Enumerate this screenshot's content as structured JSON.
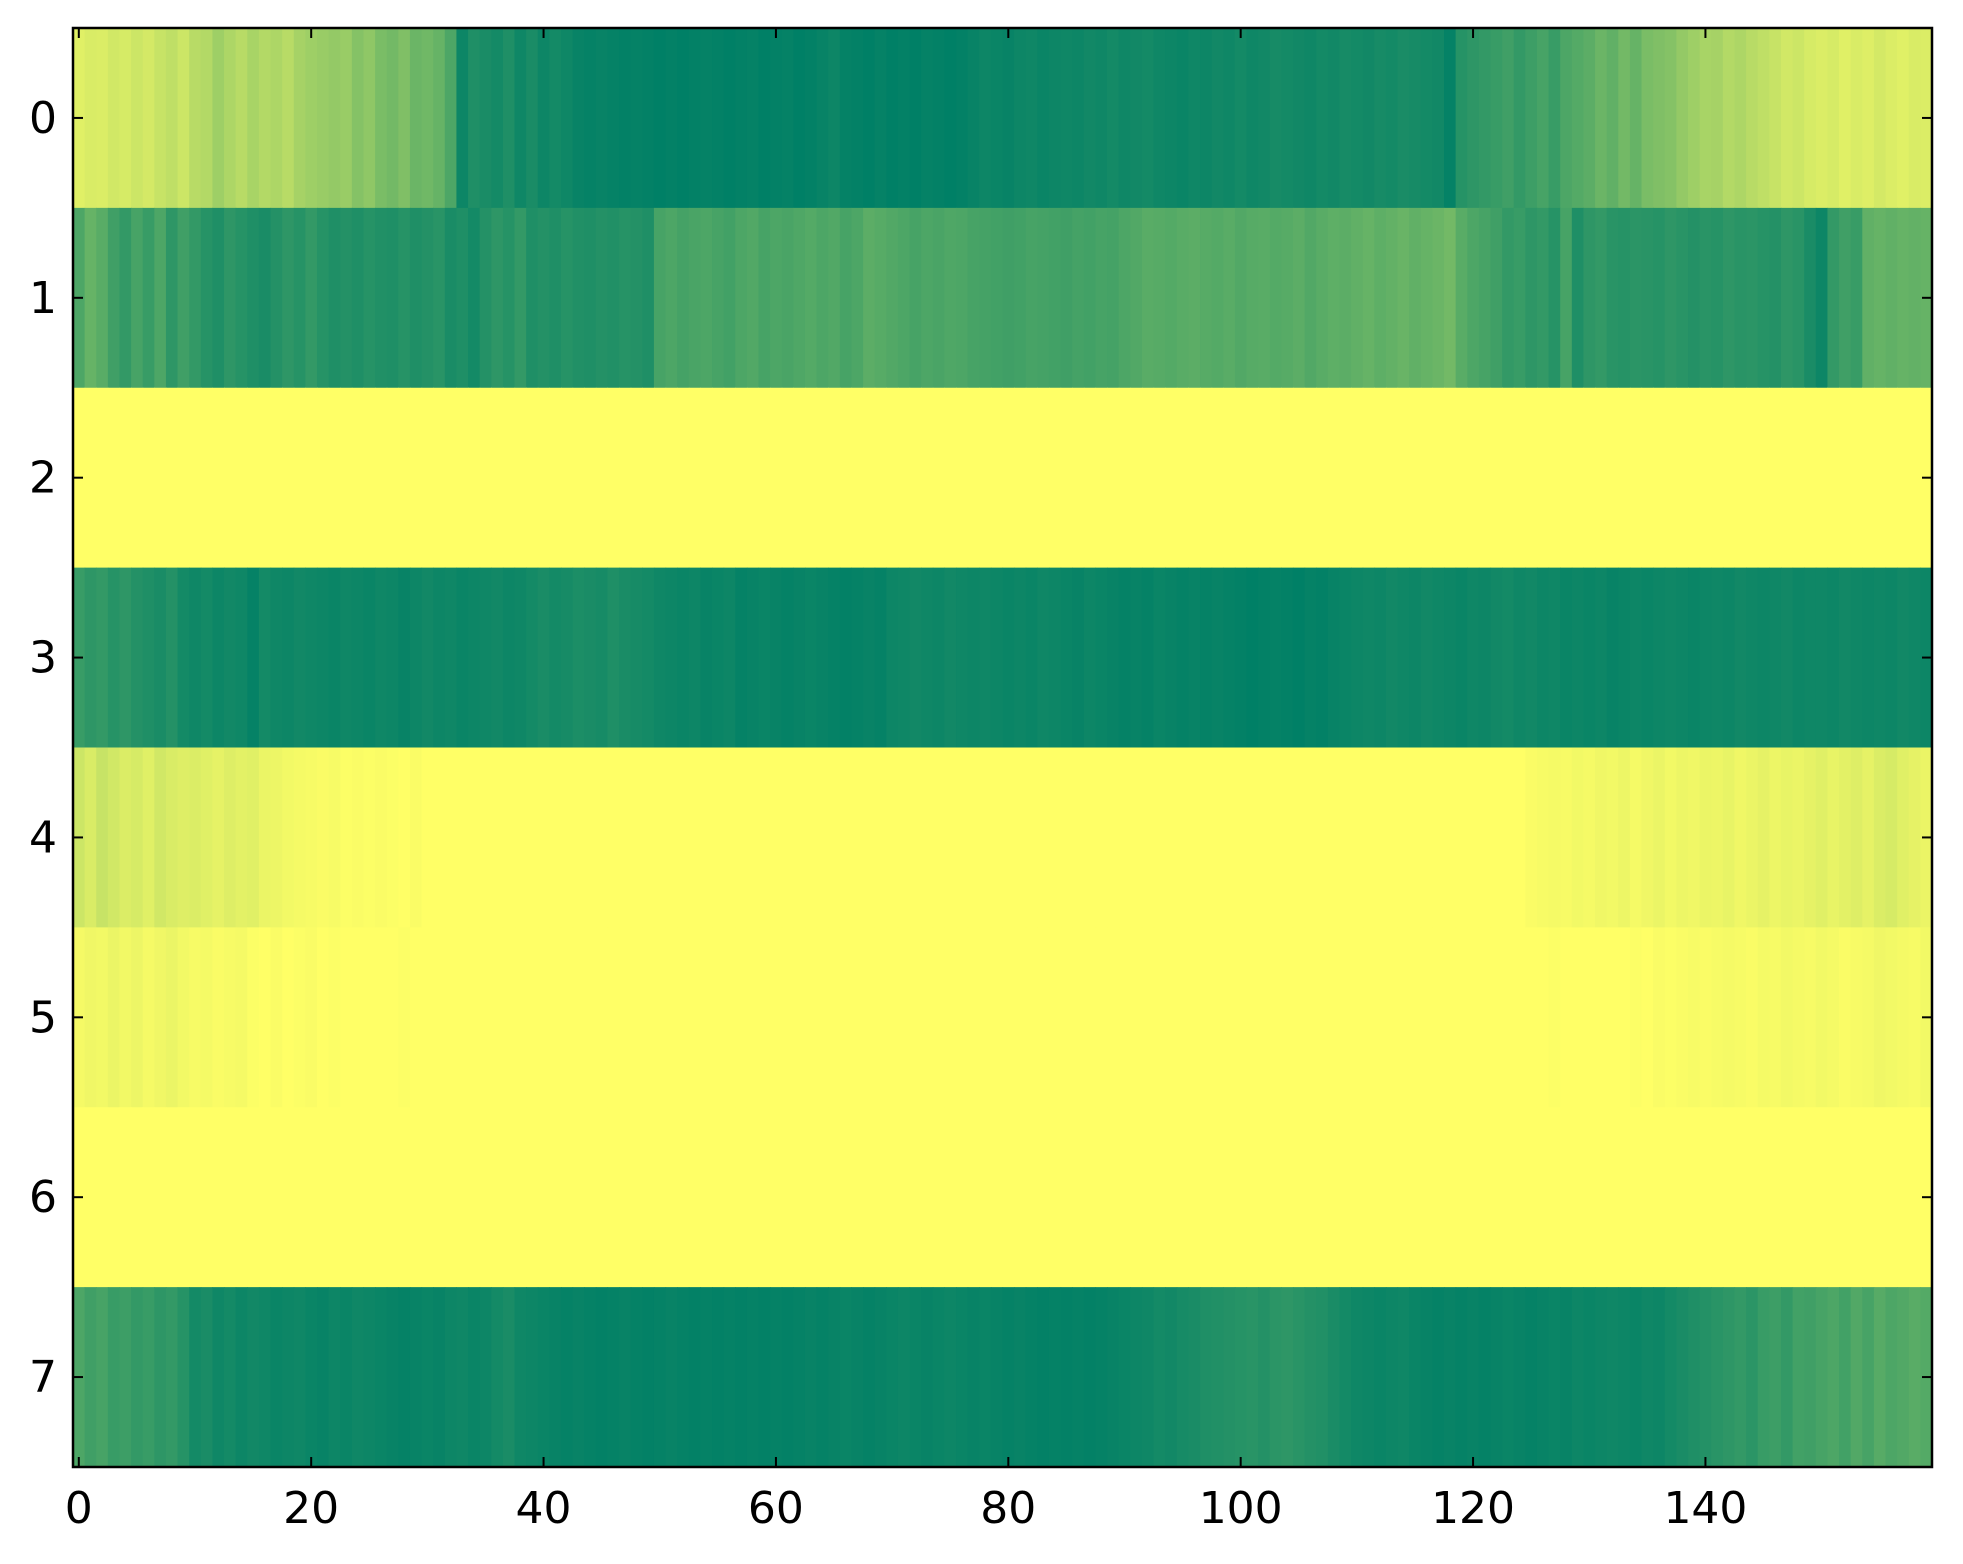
{
  "chart_data": {
    "type": "heatmap",
    "colormap": "summer",
    "clim": [
      0,
      1
    ],
    "xlim": [
      -0.5,
      159.5
    ],
    "ylim": [
      7.5,
      -0.5
    ],
    "xticks": [
      0,
      20,
      40,
      60,
      80,
      100,
      120,
      140
    ],
    "yticks": [
      0,
      1,
      2,
      3,
      4,
      5,
      6,
      7
    ],
    "z": [
      [
        0.88,
        0.85,
        0.86,
        0.82,
        0.84,
        0.8,
        0.83,
        0.78,
        0.75,
        0.8,
        0.72,
        0.7,
        0.62,
        0.68,
        0.72,
        0.66,
        0.7,
        0.68,
        0.72,
        0.65,
        0.62,
        0.6,
        0.58,
        0.6,
        0.52,
        0.56,
        0.48,
        0.45,
        0.5,
        0.42,
        0.44,
        0.4,
        0.3,
        0.05,
        0.12,
        0.1,
        0.08,
        0.12,
        0.06,
        0.1,
        0.05,
        0.08,
        0.06,
        0.03,
        0.02,
        0.03,
        0.02,
        0.01,
        0.02,
        0.01,
        0.0,
        0.01,
        0.0,
        0.01,
        0.02,
        0.01,
        0.0,
        0.01,
        0.02,
        0.0,
        0.01,
        0.02,
        0.0,
        0.01,
        0.03,
        0.05,
        0.02,
        0.01,
        0.0,
        0.02,
        0.0,
        0.01,
        0.0,
        0.02,
        0.01,
        0.0,
        0.01,
        0.03,
        0.05,
        0.04,
        0.03,
        0.05,
        0.06,
        0.04,
        0.05,
        0.06,
        0.05,
        0.07,
        0.06,
        0.08,
        0.06,
        0.07,
        0.08,
        0.06,
        0.05,
        0.04,
        0.06,
        0.05,
        0.07,
        0.06,
        0.08,
        0.06,
        0.07,
        0.09,
        0.08,
        0.07,
        0.06,
        0.08,
        0.07,
        0.09,
        0.08,
        0.07,
        0.09,
        0.08,
        0.1,
        0.09,
        0.08,
        0.07,
        0.02,
        0.15,
        0.18,
        0.2,
        0.22,
        0.25,
        0.2,
        0.24,
        0.28,
        0.22,
        0.3,
        0.33,
        0.36,
        0.42,
        0.38,
        0.45,
        0.4,
        0.48,
        0.5,
        0.52,
        0.58,
        0.62,
        0.66,
        0.65,
        0.7,
        0.68,
        0.72,
        0.75,
        0.78,
        0.82,
        0.8,
        0.84,
        0.86,
        0.84,
        0.88,
        0.85,
        0.87,
        0.83,
        0.86,
        0.88,
        0.85,
        0.86
      ],
      [
        0.3,
        0.4,
        0.35,
        0.25,
        0.2,
        0.28,
        0.22,
        0.3,
        0.18,
        0.25,
        0.2,
        0.15,
        0.12,
        0.18,
        0.15,
        0.12,
        0.1,
        0.14,
        0.18,
        0.15,
        0.2,
        0.15,
        0.12,
        0.14,
        0.12,
        0.15,
        0.13,
        0.12,
        0.15,
        0.12,
        0.14,
        0.16,
        0.1,
        0.12,
        0.08,
        0.14,
        0.18,
        0.15,
        0.2,
        0.12,
        0.14,
        0.12,
        0.15,
        0.13,
        0.12,
        0.14,
        0.13,
        0.15,
        0.14,
        0.12,
        0.28,
        0.3,
        0.27,
        0.29,
        0.3,
        0.28,
        0.26,
        0.3,
        0.32,
        0.28,
        0.3,
        0.29,
        0.31,
        0.33,
        0.3,
        0.32,
        0.28,
        0.3,
        0.36,
        0.34,
        0.32,
        0.3,
        0.28,
        0.3,
        0.29,
        0.31,
        0.3,
        0.28,
        0.27,
        0.26,
        0.25,
        0.26,
        0.28,
        0.27,
        0.26,
        0.25,
        0.27,
        0.26,
        0.28,
        0.27,
        0.3,
        0.32,
        0.35,
        0.34,
        0.33,
        0.35,
        0.36,
        0.34,
        0.33,
        0.35,
        0.32,
        0.34,
        0.35,
        0.33,
        0.34,
        0.36,
        0.32,
        0.35,
        0.37,
        0.36,
        0.38,
        0.4,
        0.37,
        0.39,
        0.41,
        0.38,
        0.4,
        0.42,
        0.45,
        0.35,
        0.3,
        0.28,
        0.25,
        0.2,
        0.22,
        0.18,
        0.2,
        0.15,
        0.28,
        0.12,
        0.18,
        0.2,
        0.16,
        0.15,
        0.17,
        0.16,
        0.15,
        0.18,
        0.16,
        0.14,
        0.16,
        0.15,
        0.18,
        0.16,
        0.17,
        0.15,
        0.14,
        0.18,
        0.16,
        0.1,
        0.05,
        0.2,
        0.25,
        0.22,
        0.38,
        0.4,
        0.38,
        0.4,
        0.39,
        0.4
      ],
      [
        1,
        1,
        1,
        1,
        1,
        1,
        1,
        1,
        1,
        1,
        1,
        1,
        1,
        1,
        1,
        1,
        1,
        1,
        1,
        1,
        1,
        1,
        1,
        1,
        1,
        1,
        1,
        1,
        1,
        1,
        1,
        1,
        1,
        1,
        1,
        1,
        1,
        1,
        1,
        1,
        1,
        1,
        1,
        1,
        1,
        1,
        1,
        1,
        1,
        1,
        1,
        1,
        1,
        1,
        1,
        1,
        1,
        1,
        1,
        1,
        1,
        1,
        1,
        1,
        1,
        1,
        1,
        1,
        1,
        1,
        1,
        1,
        1,
        1,
        1,
        1,
        1,
        1,
        1,
        1,
        1,
        1,
        1,
        1,
        1,
        1,
        1,
        1,
        1,
        1,
        1,
        1,
        1,
        1,
        1,
        1,
        1,
        1,
        1,
        1,
        1,
        1,
        1,
        1,
        1,
        1,
        1,
        1,
        1,
        1,
        1,
        1,
        1,
        1,
        1,
        1,
        1,
        1,
        1,
        1,
        1,
        1,
        1,
        1,
        1,
        1,
        1,
        1,
        1,
        1,
        1,
        1,
        1,
        1,
        1,
        1,
        1,
        1,
        1,
        1,
        1,
        1,
        1,
        1,
        1,
        1,
        1,
        1,
        1,
        1,
        1,
        1,
        1,
        1,
        1,
        1,
        1,
        1,
        1,
        1
      ],
      [
        0.22,
        0.18,
        0.2,
        0.15,
        0.18,
        0.14,
        0.12,
        0.1,
        0.14,
        0.08,
        0.06,
        0.08,
        0.05,
        0.07,
        0.06,
        0.02,
        0.08,
        0.06,
        0.05,
        0.07,
        0.06,
        0.05,
        0.04,
        0.06,
        0.05,
        0.04,
        0.06,
        0.05,
        0.03,
        0.05,
        0.07,
        0.05,
        0.06,
        0.04,
        0.05,
        0.06,
        0.07,
        0.05,
        0.06,
        0.08,
        0.1,
        0.08,
        0.09,
        0.11,
        0.1,
        0.09,
        0.12,
        0.1,
        0.09,
        0.08,
        0.06,
        0.05,
        0.04,
        0.05,
        0.03,
        0.04,
        0.05,
        0.02,
        0.03,
        0.04,
        0.03,
        0.02,
        0.03,
        0.04,
        0.03,
        0.02,
        0.01,
        0.02,
        0.03,
        0.02,
        0.05,
        0.06,
        0.07,
        0.06,
        0.05,
        0.07,
        0.06,
        0.05,
        0.06,
        0.05,
        0.04,
        0.05,
        0.04,
        0.06,
        0.05,
        0.04,
        0.03,
        0.05,
        0.04,
        0.03,
        0.02,
        0.03,
        0.02,
        0.04,
        0.03,
        0.02,
        0.03,
        0.02,
        0.03,
        0.02,
        0.01,
        0.0,
        0.01,
        0.02,
        0.01,
        0.0,
        0.02,
        0.01,
        0.03,
        0.04,
        0.05,
        0.06,
        0.05,
        0.07,
        0.06,
        0.05,
        0.07,
        0.06,
        0.05,
        0.04,
        0.06,
        0.05,
        0.07,
        0.08,
        0.06,
        0.07,
        0.05,
        0.06,
        0.04,
        0.05,
        0.04,
        0.05,
        0.03,
        0.04,
        0.05,
        0.04,
        0.05,
        0.06,
        0.05,
        0.04,
        0.05,
        0.06,
        0.05,
        0.07,
        0.06,
        0.05,
        0.06,
        0.07,
        0.05,
        0.06,
        0.06,
        0.05,
        0.07,
        0.06,
        0.05,
        0.06,
        0.05,
        0.07,
        0.06,
        0.05
      ],
      [
        0.8,
        0.85,
        0.78,
        0.82,
        0.86,
        0.84,
        0.88,
        0.82,
        0.85,
        0.87,
        0.86,
        0.88,
        0.9,
        0.87,
        0.89,
        0.88,
        0.92,
        0.93,
        0.95,
        0.96,
        0.97,
        0.98,
        0.97,
        0.99,
        0.98,
        0.99,
        0.98,
        0.99,
        1,
        0.98,
        1,
        1,
        1,
        1,
        1,
        1,
        1,
        1,
        1,
        1,
        1,
        1,
        1,
        1,
        1,
        1,
        1,
        1,
        1,
        1,
        1,
        1,
        1,
        1,
        1,
        1,
        1,
        1,
        1,
        1,
        1,
        1,
        1,
        1,
        1,
        1,
        1,
        1,
        1,
        1,
        1,
        1,
        1,
        1,
        1,
        1,
        1,
        1,
        1,
        1,
        1,
        1,
        1,
        1,
        1,
        1,
        1,
        1,
        1,
        1,
        1,
        1,
        1,
        1,
        1,
        1,
        1,
        1,
        1,
        1,
        1,
        1,
        1,
        1,
        1,
        1,
        1,
        1,
        1,
        1,
        1,
        1,
        1,
        1,
        1,
        1,
        1,
        1,
        1,
        1,
        1,
        1,
        1,
        1,
        1,
        0.98,
        0.97,
        0.96,
        0.97,
        0.95,
        0.96,
        0.94,
        0.95,
        0.93,
        0.96,
        0.94,
        0.92,
        0.95,
        0.93,
        0.94,
        0.92,
        0.93,
        0.91,
        0.94,
        0.92,
        0.9,
        0.93,
        0.91,
        0.92,
        0.9,
        0.88,
        0.91,
        0.89,
        0.87,
        0.9,
        0.86,
        0.84,
        0.88,
        0.9,
        0.92
      ],
      [
        0.96,
        0.94,
        0.95,
        0.92,
        0.95,
        0.93,
        0.96,
        0.94,
        0.92,
        0.95,
        0.97,
        0.96,
        0.98,
        0.97,
        0.96,
        0.99,
        1,
        0.98,
        1,
        0.99,
        0.98,
        1,
        0.99,
        1,
        1,
        1,
        1,
        1,
        0.99,
        1,
        1,
        1,
        1,
        1,
        1,
        1,
        1,
        1,
        1,
        1,
        1,
        1,
        1,
        1,
        1,
        1,
        1,
        1,
        1,
        1,
        1,
        1,
        1,
        1,
        1,
        1,
        1,
        1,
        1,
        1,
        1,
        1,
        1,
        1,
        1,
        1,
        1,
        1,
        1,
        1,
        1,
        1,
        1,
        1,
        1,
        1,
        1,
        1,
        1,
        1,
        1,
        1,
        1,
        1,
        1,
        1,
        1,
        1,
        1,
        1,
        1,
        1,
        1,
        1,
        1,
        1,
        1,
        1,
        1,
        1,
        1,
        1,
        1,
        1,
        1,
        1,
        1,
        1,
        1,
        1,
        1,
        1,
        1,
        1,
        1,
        1,
        1,
        1,
        1,
        1,
        1,
        1,
        1,
        1,
        1,
        1,
        1,
        0.99,
        1,
        1,
        1,
        1,
        1,
        1,
        0.99,
        1,
        0.98,
        0.99,
        0.98,
        0.97,
        0.98,
        0.97,
        0.96,
        0.97,
        0.98,
        0.96,
        0.97,
        0.95,
        0.96,
        0.97,
        0.95,
        0.96,
        0.98,
        0.97,
        0.96,
        0.94,
        0.95,
        0.96,
        0.97,
        0.95
      ],
      [
        1,
        1,
        1,
        1,
        1,
        1,
        1,
        1,
        1,
        1,
        1,
        1,
        1,
        1,
        1,
        1,
        1,
        1,
        1,
        1,
        1,
        1,
        1,
        1,
        1,
        1,
        1,
        1,
        1,
        1,
        1,
        1,
        1,
        1,
        1,
        1,
        1,
        1,
        1,
        1,
        1,
        1,
        1,
        1,
        1,
        1,
        1,
        1,
        1,
        1,
        1,
        1,
        1,
        1,
        1,
        1,
        1,
        1,
        1,
        1,
        1,
        1,
        1,
        1,
        1,
        1,
        1,
        1,
        1,
        1,
        1,
        1,
        1,
        1,
        1,
        1,
        1,
        1,
        1,
        1,
        1,
        1,
        1,
        1,
        1,
        1,
        1,
        1,
        1,
        1,
        1,
        1,
        1,
        1,
        1,
        1,
        1,
        1,
        1,
        1,
        1,
        1,
        1,
        1,
        1,
        1,
        1,
        1,
        1,
        1,
        1,
        1,
        1,
        1,
        1,
        1,
        1,
        1,
        1,
        1,
        1,
        1,
        1,
        1,
        1,
        1,
        1,
        1,
        1,
        1,
        1,
        1,
        1,
        1,
        1,
        1,
        1,
        1,
        1,
        1,
        1,
        1,
        1,
        1,
        1,
        1,
        1,
        1,
        1,
        1,
        1,
        1,
        1,
        1,
        1,
        1,
        1,
        1,
        1,
        1
      ],
      [
        0.3,
        0.25,
        0.28,
        0.22,
        0.24,
        0.2,
        0.22,
        0.18,
        0.2,
        0.15,
        0.08,
        0.1,
        0.06,
        0.08,
        0.05,
        0.07,
        0.06,
        0.04,
        0.05,
        0.06,
        0.04,
        0.03,
        0.05,
        0.04,
        0.06,
        0.05,
        0.04,
        0.03,
        0.02,
        0.03,
        0.04,
        0.03,
        0.05,
        0.06,
        0.04,
        0.05,
        0.08,
        0.1,
        0.06,
        0.05,
        0.04,
        0.03,
        0.02,
        0.03,
        0.02,
        0.01,
        0.02,
        0.03,
        0.02,
        0.01,
        0.02,
        0.03,
        0.02,
        0.01,
        0.02,
        0.01,
        0.02,
        0.01,
        0.02,
        0.01,
        0.02,
        0.01,
        0.02,
        0.03,
        0.02,
        0.03,
        0.04,
        0.03,
        0.02,
        0.03,
        0.04,
        0.05,
        0.04,
        0.03,
        0.04,
        0.05,
        0.04,
        0.03,
        0.04,
        0.03,
        0.02,
        0.03,
        0.02,
        0.01,
        0.02,
        0.01,
        0.02,
        0.01,
        0.02,
        0.03,
        0.04,
        0.05,
        0.06,
        0.08,
        0.07,
        0.09,
        0.1,
        0.12,
        0.13,
        0.14,
        0.15,
        0.16,
        0.14,
        0.17,
        0.18,
        0.16,
        0.14,
        0.13,
        0.1,
        0.08,
        0.06,
        0.05,
        0.04,
        0.05,
        0.06,
        0.04,
        0.03,
        0.02,
        0.03,
        0.02,
        0.03,
        0.02,
        0.03,
        0.04,
        0.03,
        0.02,
        0.03,
        0.04,
        0.03,
        0.05,
        0.04,
        0.05,
        0.06,
        0.05,
        0.04,
        0.06,
        0.05,
        0.08,
        0.1,
        0.12,
        0.14,
        0.16,
        0.18,
        0.2,
        0.17,
        0.22,
        0.24,
        0.2,
        0.26,
        0.25,
        0.28,
        0.3,
        0.26,
        0.32,
        0.28,
        0.34,
        0.3,
        0.32,
        0.35,
        0.33
      ]
    ]
  }
}
